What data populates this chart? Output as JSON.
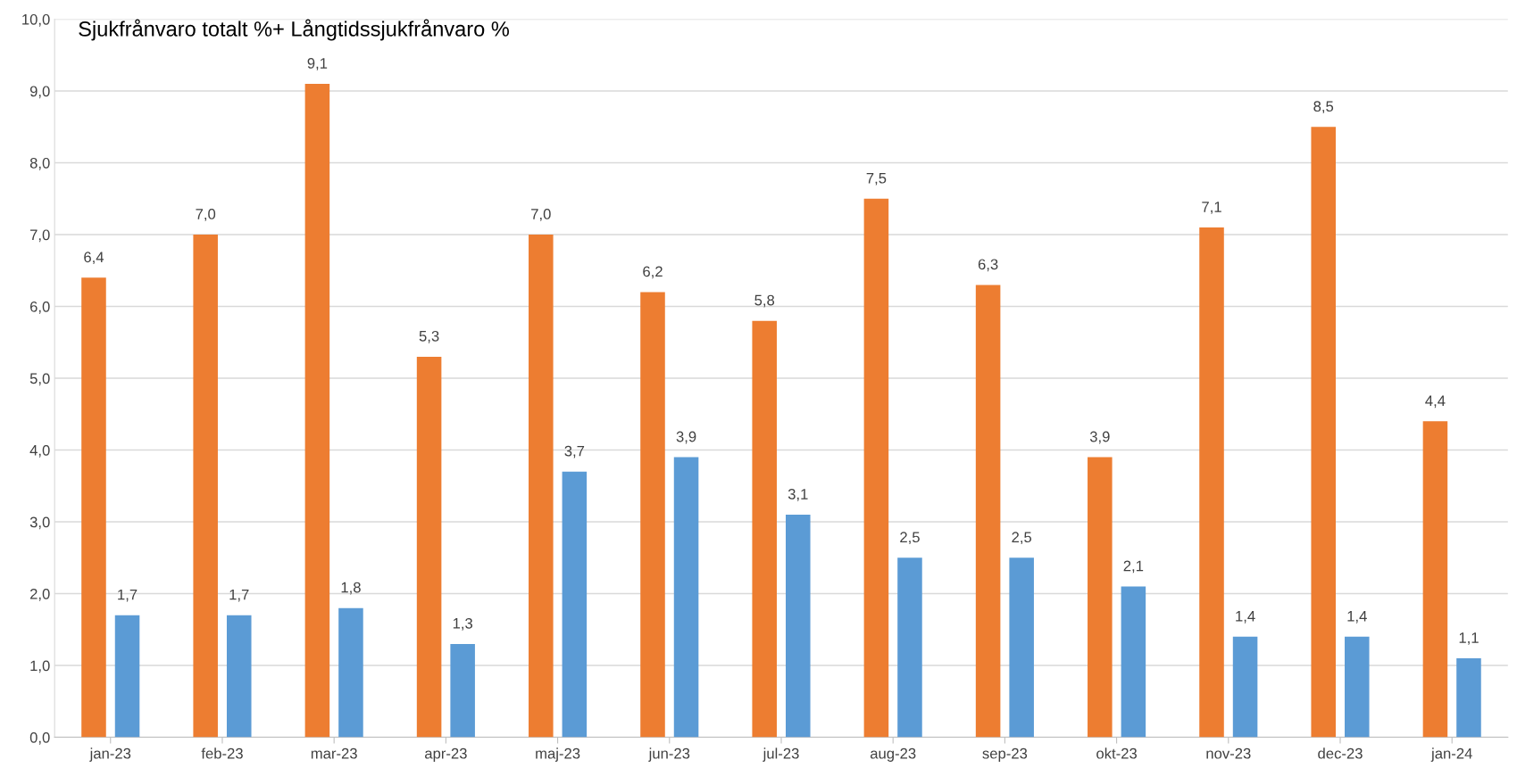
{
  "chart_data": {
    "type": "bar",
    "title": "Sjukfrånvaro totalt %+ Långtidssjukfrånvaro %",
    "categories": [
      "jan-23",
      "feb-23",
      "mar-23",
      "apr-23",
      "maj-23",
      "jun-23",
      "jul-23",
      "aug-23",
      "sep-23",
      "okt-23",
      "nov-23",
      "dec-23",
      "jan-24"
    ],
    "series": [
      {
        "color": "#ed7d31",
        "values": [
          6.4,
          7.0,
          9.1,
          5.3,
          7.0,
          6.2,
          5.8,
          7.5,
          6.3,
          3.9,
          7.1,
          8.5,
          4.4
        ],
        "value_labels": [
          "6,4",
          "7,0",
          "9,1",
          "5,3",
          "7,0",
          "6,2",
          "5,8",
          "7,5",
          "6,3",
          "3,9",
          "7,1",
          "8,5",
          "4,4"
        ]
      },
      {
        "color": "#5b9bd5",
        "values": [
          1.7,
          1.7,
          1.8,
          1.3,
          3.7,
          3.9,
          3.1,
          2.5,
          2.5,
          2.1,
          1.4,
          1.4,
          1.1
        ],
        "value_labels": [
          "1,7",
          "1,7",
          "1,8",
          "1,3",
          "3,7",
          "3,9",
          "3,1",
          "2,5",
          "2,5",
          "2,1",
          "1,4",
          "1,4",
          "1,1"
        ]
      }
    ],
    "ylim": [
      0,
      10
    ],
    "yticks": [
      {
        "value": 0,
        "label": "0,0"
      },
      {
        "value": 1,
        "label": "1,0"
      },
      {
        "value": 2,
        "label": "2,0"
      },
      {
        "value": 3,
        "label": "3,0"
      },
      {
        "value": 4,
        "label": "4,0"
      },
      {
        "value": 5,
        "label": "5,0"
      },
      {
        "value": 6,
        "label": "6,0"
      },
      {
        "value": 7,
        "label": "7,0"
      },
      {
        "value": 8,
        "label": "8,0"
      },
      {
        "value": 9,
        "label": "9,0"
      },
      {
        "value": 10,
        "label": "10,0"
      }
    ],
    "grid": "y"
  }
}
